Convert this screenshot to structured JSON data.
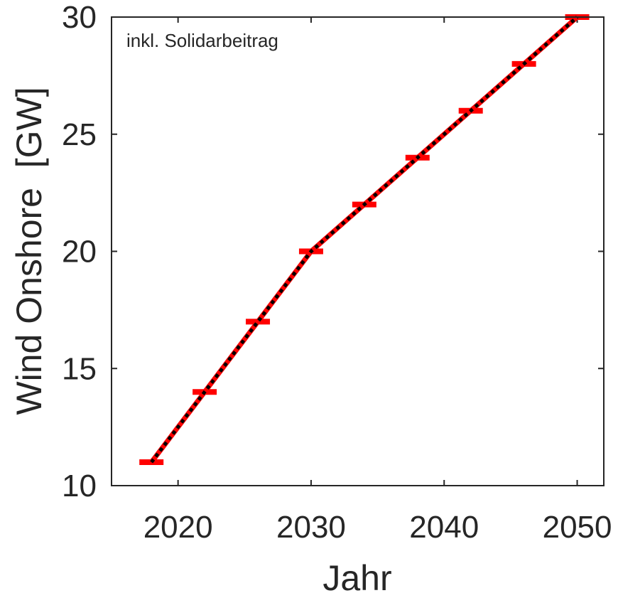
{
  "chart_data": {
    "type": "line",
    "title": "",
    "xlabel": "Jahr",
    "ylabel": "Wind Onshore  [GW]",
    "annotation": "inkl. Solidarbeitrag",
    "xlim": [
      2015,
      2052
    ],
    "ylim": [
      10,
      30
    ],
    "xticks": [
      2020,
      2030,
      2040,
      2050
    ],
    "yticks": [
      10,
      15,
      20,
      25,
      30
    ],
    "grid": false,
    "legend": "none",
    "x": [
      2018,
      2022,
      2026,
      2030,
      2034,
      2038,
      2042,
      2046,
      2050
    ],
    "series": [
      {
        "style": "solid",
        "color": "#ff0000",
        "values": [
          11,
          14,
          17,
          20,
          22,
          24,
          26,
          28,
          30
        ],
        "marker": "horizontal-bar"
      },
      {
        "style": "dotted",
        "color": "#000000",
        "values": [
          11,
          14,
          17,
          20,
          22,
          24,
          26,
          28,
          30
        ]
      }
    ]
  }
}
